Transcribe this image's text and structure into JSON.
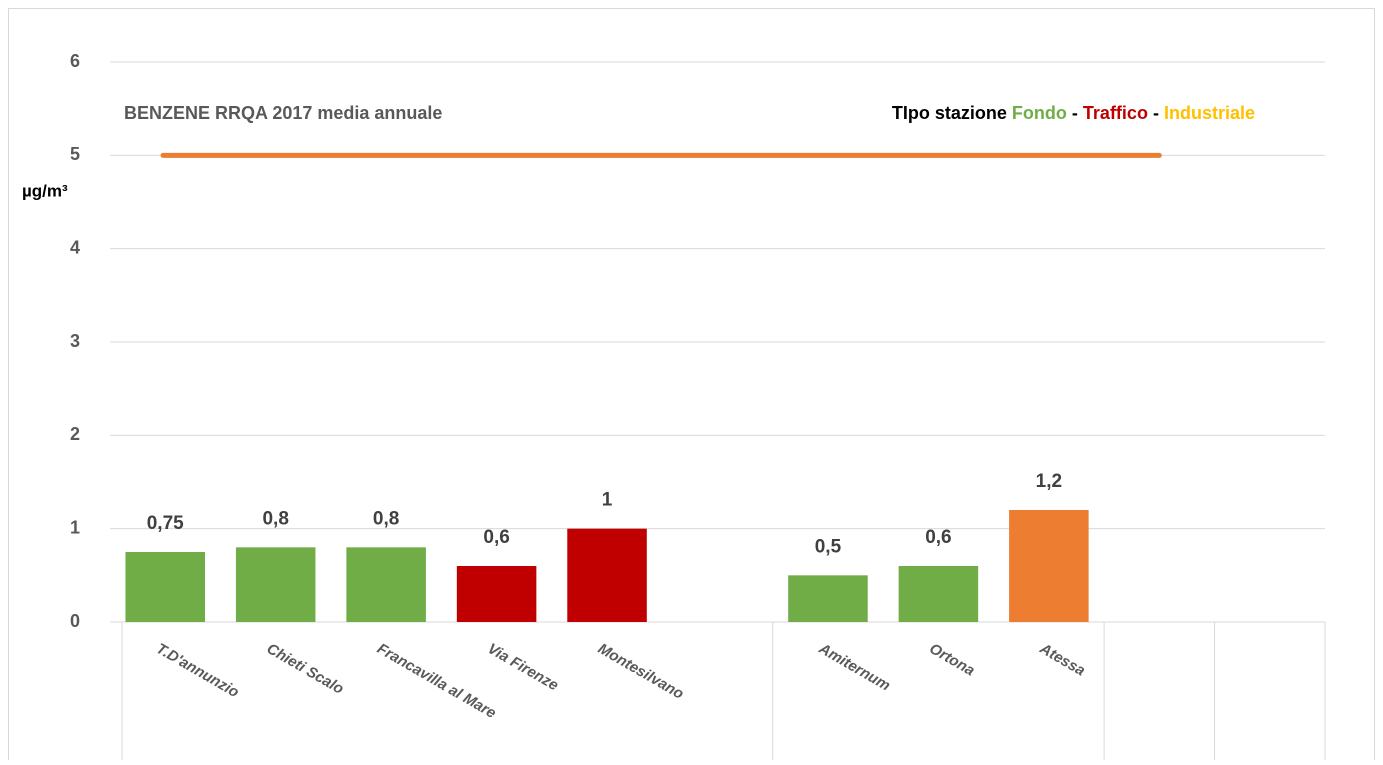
{
  "chart_data": {
    "type": "bar",
    "title": "BENZENE  RRQA  2017 media annuale",
    "ylabel": "µg/m³",
    "categories": [
      "T.D'annunzio",
      "Chieti Scalo",
      "Francavilla al Mare",
      "Via Firenze",
      "Montesilvano",
      null,
      "Amiternum",
      "Ortona",
      "Atessa",
      null,
      null
    ],
    "values": [
      0.75,
      0.8,
      0.8,
      0.6,
      1,
      null,
      0.5,
      0.6,
      1.2,
      null,
      null
    ],
    "value_labels": [
      "0,75",
      "0,8",
      "0,8",
      "0,6",
      "1",
      null,
      "0,5",
      "0,6",
      "1,2",
      null,
      null
    ],
    "colors": [
      "#70ad47",
      "#70ad47",
      "#70ad47",
      "#c00000",
      "#c00000",
      null,
      "#70ad47",
      "#70ad47",
      "#ed7d31",
      null,
      null
    ],
    "limit": 5,
    "limit_color": "#ed7d31",
    "legend": {
      "title": "TIpo stazione",
      "separator": "-",
      "items": [
        {
          "name": "Fondo",
          "color": "#70ad47"
        },
        {
          "name": "Traffico",
          "color": "#c00000"
        },
        {
          "name": "Industriale",
          "color": "#ffc000"
        }
      ]
    },
    "ylim": [
      0,
      6
    ],
    "yticks": [
      0,
      1,
      2,
      3,
      4,
      5,
      6
    ],
    "grid": true
  }
}
